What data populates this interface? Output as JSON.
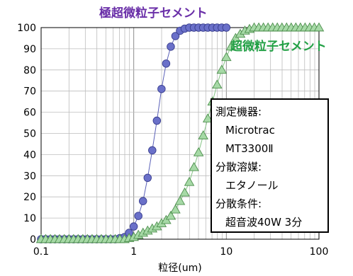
{
  "chart_data": {
    "type": "scatter",
    "xscale": "log",
    "xlim": [
      0.1,
      100
    ],
    "ylim": [
      0,
      100
    ],
    "grid": true,
    "x_tick_labels": [
      "0.1",
      "1",
      "10",
      "100"
    ],
    "y_tick_labels": [
      "0",
      "10",
      "20",
      "30",
      "40",
      "50",
      "60",
      "70",
      "80",
      "90",
      "100"
    ],
    "xlabel": "粒径(um)",
    "ylabel": "",
    "series": [
      {
        "name": "極超微粒子セメント",
        "marker": "circle",
        "color": "#6a70c9",
        "label_color": "#6a2fa8",
        "x": [
          0.1,
          0.112,
          0.126,
          0.141,
          0.158,
          0.178,
          0.2,
          0.224,
          0.251,
          0.282,
          0.316,
          0.355,
          0.398,
          0.447,
          0.501,
          0.562,
          0.631,
          0.708,
          0.794,
          0.891,
          1.0,
          1.122,
          1.259,
          1.413,
          1.585,
          1.778,
          1.995,
          2.239,
          2.512,
          2.818,
          3.162,
          3.548,
          3.981,
          4.467,
          5.012,
          5.623,
          6.31,
          7.079,
          7.943,
          8.913,
          10.0
        ],
        "y": [
          0,
          0,
          0,
          0,
          0,
          0,
          0,
          0,
          0,
          0,
          0,
          0,
          0,
          0,
          0,
          0,
          0,
          0.5,
          1,
          3,
          6,
          11,
          18,
          29,
          42,
          56,
          71,
          83,
          91,
          96,
          98.5,
          99.5,
          100,
          100,
          100,
          100,
          100,
          100,
          100,
          100,
          100
        ]
      },
      {
        "name": "超微粒子セメント",
        "marker": "triangle",
        "color": "#a6d9a6",
        "label_color": "#22a045",
        "x": [
          0.1,
          0.112,
          0.126,
          0.141,
          0.158,
          0.178,
          0.2,
          0.224,
          0.251,
          0.282,
          0.316,
          0.355,
          0.398,
          0.447,
          0.501,
          0.562,
          0.631,
          0.708,
          0.794,
          0.891,
          1.0,
          1.122,
          1.259,
          1.413,
          1.585,
          1.778,
          1.995,
          2.239,
          2.512,
          2.818,
          3.162,
          3.548,
          3.981,
          4.467,
          5.012,
          5.623,
          6.31,
          7.079,
          7.943,
          8.913,
          10.0,
          11.22,
          12.59,
          14.13,
          15.85,
          17.78,
          19.95,
          22.39,
          25.12,
          28.18,
          31.62,
          35.48,
          39.81,
          44.67,
          50.12,
          56.23,
          63.1,
          70.79,
          79.43,
          89.13,
          100.0
        ],
        "y": [
          0,
          0,
          0,
          0,
          0,
          0,
          0,
          0,
          0,
          0,
          0,
          0,
          0,
          0,
          0,
          0,
          0,
          0,
          0,
          0.5,
          1,
          2,
          3,
          4,
          5,
          6,
          7.5,
          9,
          11,
          14,
          18,
          22,
          27,
          34,
          41,
          49,
          57,
          65,
          73,
          80,
          86,
          91,
          95,
          97,
          98.5,
          99.3,
          100,
          100,
          100,
          100,
          100,
          100,
          100,
          100,
          100,
          100,
          100,
          100,
          100,
          100,
          100
        ]
      }
    ]
  },
  "info_box": {
    "lines": [
      "測定機器:",
      "Microtrac",
      "MT3300Ⅱ",
      "分散溶媒:",
      "エタノール",
      "分散条件:",
      "超音波40W 3分"
    ]
  }
}
